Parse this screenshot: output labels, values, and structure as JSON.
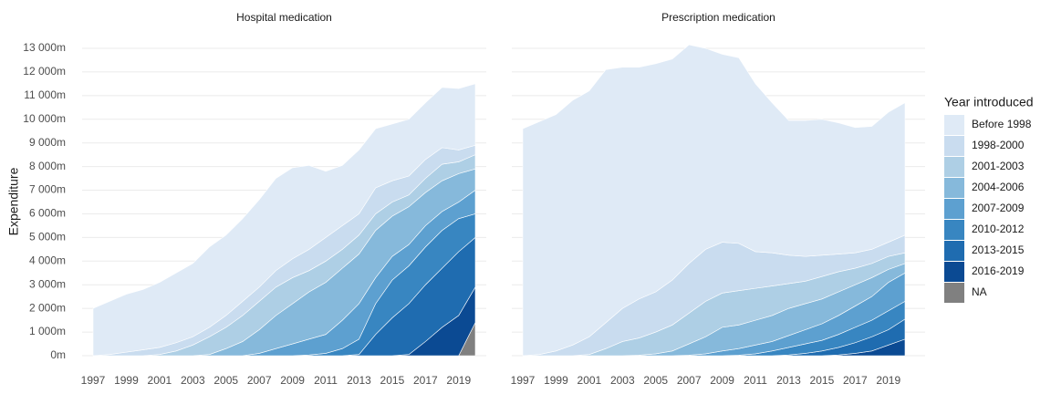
{
  "chart_data": {
    "type": "stacked-area",
    "ylabel": "Expenditure",
    "legend_title": "Year introduced",
    "grid": true,
    "x": [
      1997,
      1998,
      1999,
      2000,
      2001,
      2002,
      2003,
      2004,
      2005,
      2006,
      2007,
      2008,
      2009,
      2010,
      2011,
      2012,
      2013,
      2014,
      2015,
      2016,
      2017,
      2018,
      2019,
      2020
    ],
    "xlim": [
      1997,
      2020
    ],
    "xticks": [
      1997,
      1999,
      2001,
      2003,
      2005,
      2007,
      2009,
      2011,
      2013,
      2015,
      2017,
      2019
    ],
    "ylim": [
      0,
      13000
    ],
    "yticks": [
      {
        "value": 0,
        "label": "0m"
      },
      {
        "value": 1000,
        "label": "1 000m"
      },
      {
        "value": 2000,
        "label": "2 000m"
      },
      {
        "value": 3000,
        "label": "3 000m"
      },
      {
        "value": 4000,
        "label": "4 000m"
      },
      {
        "value": 5000,
        "label": "5 000m"
      },
      {
        "value": 6000,
        "label": "6 000m"
      },
      {
        "value": 7000,
        "label": "7 000m"
      },
      {
        "value": 8000,
        "label": "8 000m"
      },
      {
        "value": 9000,
        "label": "9 000m"
      },
      {
        "value": 10000,
        "label": "10 000m"
      },
      {
        "value": 11000,
        "label": "11 000m"
      },
      {
        "value": 12000,
        "label": "12 000m"
      },
      {
        "value": 13000,
        "label": "13 000m"
      }
    ],
    "series": [
      {
        "name": "Before 1998",
        "color": "#dfeaf6"
      },
      {
        "name": "1998-2000",
        "color": "#c9dcef"
      },
      {
        "name": "2001-2003",
        "color": "#aecfe5"
      },
      {
        "name": "2004-2006",
        "color": "#86b9db"
      },
      {
        "name": "2007-2009",
        "color": "#5da0d0"
      },
      {
        "name": "2010-2012",
        "color": "#3886c1"
      },
      {
        "name": "2013-2015",
        "color": "#1f6cb0"
      },
      {
        "name": "2016-2019",
        "color": "#0b4a93"
      },
      {
        "name": "NA",
        "color": "#808080"
      }
    ],
    "panels": [
      {
        "title": "Hospital medication",
        "values": [
          [
            2000,
            2250,
            2450,
            2550,
            2750,
            2950,
            3100,
            3400,
            3400,
            3500,
            3700,
            3900,
            3850,
            3550,
            2800,
            2550,
            2700,
            2500,
            2400,
            2400,
            2400,
            2550,
            2600,
            2600
          ],
          [
            0,
            50,
            150,
            250,
            300,
            350,
            350,
            400,
            500,
            600,
            600,
            700,
            800,
            900,
            1000,
            1000,
            900,
            1100,
            900,
            800,
            800,
            700,
            500,
            400
          ],
          [
            0,
            0,
            0,
            0,
            50,
            200,
            450,
            750,
            900,
            1100,
            1200,
            1200,
            1100,
            900,
            900,
            800,
            800,
            700,
            600,
            500,
            600,
            700,
            500,
            600
          ],
          [
            0,
            0,
            0,
            0,
            0,
            0,
            0,
            50,
            300,
            600,
            1000,
            1400,
            1700,
            2000,
            2200,
            2200,
            2100,
            2000,
            1700,
            1600,
            1400,
            1300,
            1200,
            900
          ],
          [
            0,
            0,
            0,
            0,
            0,
            0,
            0,
            0,
            0,
            0,
            100,
            300,
            500,
            670,
            800,
            1200,
            1500,
            1100,
            1000,
            900,
            900,
            800,
            700,
            1000
          ],
          [
            0,
            0,
            0,
            0,
            0,
            0,
            0,
            0,
            0,
            0,
            0,
            0,
            0,
            30,
            100,
            300,
            650,
            1300,
            1600,
            1600,
            1600,
            1600,
            1400,
            1000
          ],
          [
            0,
            0,
            0,
            0,
            0,
            0,
            0,
            0,
            0,
            0,
            0,
            0,
            0,
            0,
            0,
            0,
            50,
            900,
            1600,
            2150,
            2400,
            2500,
            2700,
            2100
          ],
          [
            0,
            0,
            0,
            0,
            0,
            0,
            0,
            0,
            0,
            0,
            0,
            0,
            0,
            0,
            0,
            0,
            0,
            0,
            0,
            50,
            600,
            1200,
            1700,
            1500
          ],
          [
            0,
            0,
            0,
            0,
            0,
            0,
            0,
            0,
            0,
            0,
            0,
            0,
            0,
            0,
            0,
            0,
            0,
            0,
            0,
            0,
            0,
            0,
            0,
            1400
          ]
        ]
      },
      {
        "title": "Prescription medication",
        "values": [
          [
            9600,
            9850,
            10000,
            10350,
            10400,
            10700,
            10200,
            9800,
            9650,
            9350,
            9250,
            8500,
            7950,
            7850,
            7100,
            6350,
            5700,
            5750,
            5750,
            5550,
            5300,
            5200,
            5500,
            5600
          ],
          [
            0,
            50,
            200,
            450,
            750,
            1100,
            1400,
            1650,
            1700,
            1900,
            2100,
            2200,
            2150,
            2000,
            1550,
            1400,
            1200,
            1050,
            900,
            750,
            650,
            600,
            600,
            750
          ],
          [
            0,
            0,
            0,
            0,
            50,
            300,
            600,
            730,
            920,
            1100,
            1300,
            1500,
            1450,
            1450,
            1350,
            1250,
            1050,
            950,
            950,
            850,
            700,
            600,
            550,
            450
          ],
          [
            0,
            0,
            0,
            0,
            0,
            0,
            0,
            20,
            80,
            200,
            480,
            720,
            1000,
            1000,
            1050,
            1100,
            1150,
            1100,
            1050,
            1000,
            900,
            800,
            550,
            400
          ],
          [
            0,
            0,
            0,
            0,
            0,
            0,
            0,
            0,
            0,
            0,
            20,
            80,
            200,
            280,
            370,
            400,
            500,
            600,
            700,
            800,
            900,
            1000,
            1200,
            1200
          ],
          [
            0,
            0,
            0,
            0,
            0,
            0,
            0,
            0,
            0,
            0,
            0,
            0,
            0,
            20,
            80,
            200,
            320,
            400,
            450,
            550,
            650,
            700,
            800,
            750
          ],
          [
            0,
            0,
            0,
            0,
            0,
            0,
            0,
            0,
            0,
            0,
            0,
            0,
            0,
            0,
            0,
            0,
            30,
            100,
            200,
            320,
            450,
            600,
            650,
            850
          ],
          [
            0,
            0,
            0,
            0,
            0,
            0,
            0,
            0,
            0,
            0,
            0,
            0,
            0,
            0,
            0,
            0,
            0,
            0,
            0,
            30,
            100,
            200,
            450,
            700
          ],
          [
            0,
            0,
            0,
            0,
            0,
            0,
            0,
            0,
            0,
            0,
            0,
            0,
            0,
            0,
            0,
            0,
            0,
            0,
            0,
            0,
            0,
            0,
            0,
            0
          ]
        ]
      }
    ]
  }
}
